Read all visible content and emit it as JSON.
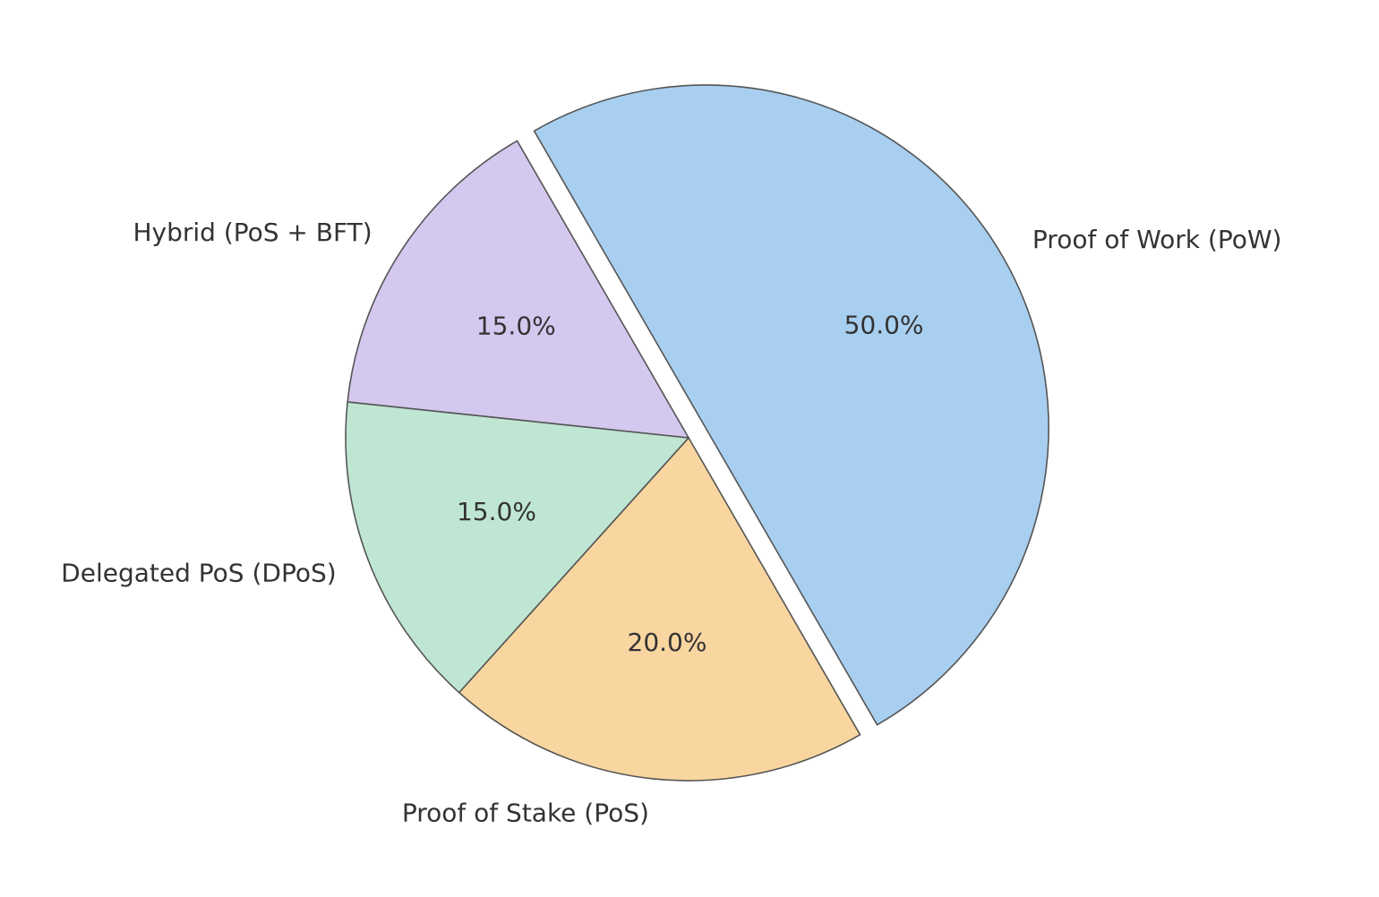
{
  "chart_data": {
    "type": "pie",
    "title": "",
    "start_angle_deg": 120,
    "direction": "clockwise",
    "slices": [
      {
        "label": "Proof of Work (PoW)",
        "value": 50.0,
        "pct_label": "50.0%",
        "color": "#a8cff0",
        "exploded": true
      },
      {
        "label": "Proof of Stake (PoS)",
        "value": 20.0,
        "pct_label": "20.0%",
        "color": "#f9d6a0",
        "exploded": false
      },
      {
        "label": "Delegated PoS (DPoS)",
        "value": 15.0,
        "pct_label": "15.0%",
        "color": "#bfe6d3",
        "exploded": false
      },
      {
        "label": "Hybrid (PoS + BFT)",
        "value": 15.0,
        "pct_label": "15.0%",
        "color": "#d5c8ef",
        "exploded": false
      }
    ],
    "edge_color": "#555555",
    "legend": "none"
  }
}
